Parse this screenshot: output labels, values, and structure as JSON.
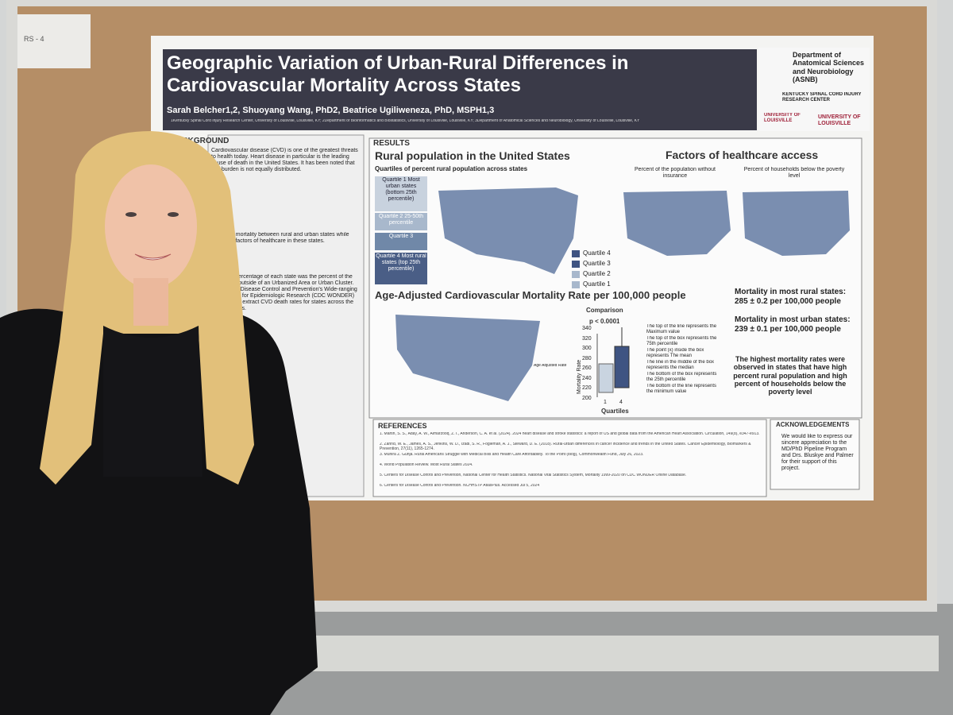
{
  "board_label": "RS - 4",
  "poster": {
    "title": "Geographic Variation of Urban-Rural Differences in Cardiovascular Mortality Across States",
    "authors": "Sarah Belcher1,2, Shuoyang Wang, PhD2, Beatrice Ugiliweneza, PhD, MSPH1,3",
    "affiliations": "1Kentucky Spinal Cord Injury Research Center, University of Louisville, Louisville, KY; 2Department of Bioinformatics and Biostatistics, University of Louisville, Louisville, KY; 3Department of Anatomical Sciences and Neurobiology, University of Louisville, Louisville, KY",
    "logos": [
      "Department of Anatomical Sciences and Neurobiology (ASNB)",
      "KENTUCKY SPINAL CORD INJURY RESEARCH CENTER",
      "UNIVERSITY OF LOUISVILLE",
      "UNIVERSITY OF LOUISVILLE"
    ],
    "background": {
      "heading": "BACKGROUND",
      "text": "Cardiovascular disease (CVD) is one of the greatest threats to health today. Heart disease in particular is the leading cause of death in the United States. It has been noted that this burden is not equally distributed."
    },
    "objective": "Compare mortality between rural and urban states while exploring factors of healthcare in these states.",
    "methods": "The rural percentage of each state was the percent of the population outside of an Urbanized Area or Urban Cluster. Centers for Disease Control and Prevention's Wide-ranging Online Data for Epidemiologic Research (CDC WONDER) was used to extract CVD death rates for states across the United States.",
    "results": {
      "heading": "RESULTS",
      "rural_title": "Rural population in the United States",
      "rural_subtitle": "Quartiles of percent rural population across states",
      "quartile_boxes": [
        "Quartile 1 Most urban states (bottom 25th percentile)",
        "Quartile 2 25-50th percentile",
        "Quartile 3",
        "Quartile 4 Most rural states (top 25th percentile)"
      ],
      "legend": [
        "Quartile 4",
        "Quartile 3",
        "Quartile 2",
        "Quartile 1"
      ],
      "access_title": "Factors of healthcare access",
      "access_maps": [
        "Percent of the population without insurance",
        "Percent of households below the poverty level"
      ],
      "mortality_title": "Age-Adjusted Cardiovascular Mortality Rate per 100,000 people",
      "map_legend": "Age Adjusted Rate",
      "comparison": {
        "title": "Comparison",
        "p_value": "p < 0.0001",
        "y_label": "Mortality Rate",
        "x_label": "Quartiles",
        "yticks": [
          "340",
          "320",
          "300",
          "280",
          "260",
          "240",
          "220",
          "200"
        ],
        "xticks": [
          "1",
          "4"
        ],
        "notes": [
          "The top of the line represents the Maximum value",
          "The top of the box represents the 75th percentile",
          "The point (x) inside the box represents The mean",
          "The line in the middle of the box represents the median",
          "The bottom of the box represents the 25th percentile",
          "The bottom of the line represents the minimum value"
        ]
      },
      "stats": [
        "Mortality in most rural states:",
        "285 ± 0.2 per 100,000 people",
        "Mortality in most urban states:",
        "239 ± 0.1 per 100,000 people"
      ],
      "conclusion": "The highest mortality rates were observed in states that have high percent rural population and high percent of households below the poverty level"
    },
    "references": {
      "heading": "REFERENCES",
      "items": [
        "1. Martin, S. S., Aday, A. W., Almarzooq, Z. I., Anderson, C. A. et al. (2024). 2024 heart disease and stroke statistics: a report of US and global data from the American Heart Association. Circulation, 149(8), e347-e913.",
        "2. Zahnd, W. E., James, A. S., Jenkins, W. D., Izadi, S. R., Fogleman, A. J., Steward, D. E. (2018). Rural-urban differences in cancer incidence and trends in the United States. Cancer Epidemiology, Biomarkers & Prevention, 27(11), 1265-1274.",
        "3. Munira Z. Gunja. Rural Americans Struggle with Medical Bills and Health Care Affordability. To the Point (blog), Commonwealth Fund, July 26, 2023.",
        "4. World Population Review. Most Rural States 2024.",
        "5. Centers for Disease Control and Prevention, National Center for Health Statistics. National Vital Statistics System, Mortality 1999-2020 on CDC WONDER Online Database.",
        "6. Centers for Disease Control and Prevention. NCHHSTP AtlasPlus. Accessed Jul 5, 2024"
      ]
    },
    "acknowledgements": {
      "heading": "ACKNOWLEDGEMENTS",
      "text": "We would like to express our sincere appreciation to the MD/PhD Pipeline Program and Drs. Bluskye and Palmer for their support of this project."
    }
  }
}
